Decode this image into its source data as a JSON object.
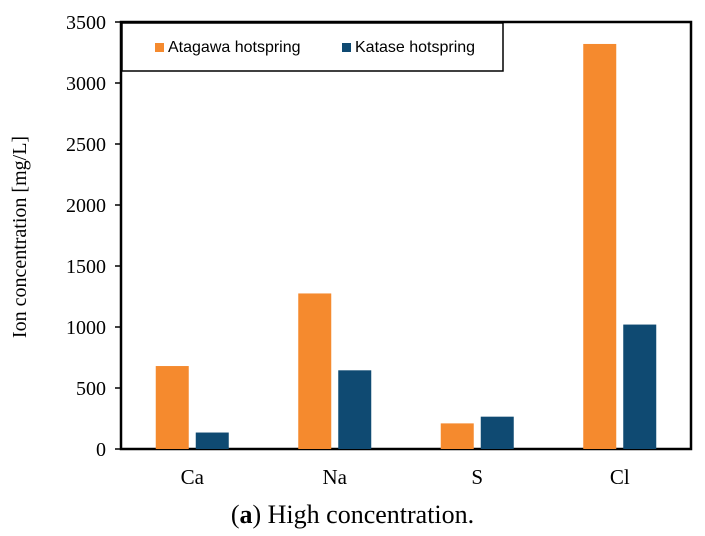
{
  "chart_data": {
    "type": "bar",
    "title": "",
    "xlabel": "",
    "ylabel": "Ion concentration  [mg/L]",
    "ylim": [
      0,
      3500
    ],
    "yticks": [
      0,
      500,
      1000,
      1500,
      2000,
      2500,
      3000,
      3500
    ],
    "grid": false,
    "legend_position": "top-left",
    "categories": [
      "Ca",
      "Na",
      "S",
      "Cl"
    ],
    "series": [
      {
        "name": "Atagawa hotspring",
        "color": "#f58a2e",
        "values": [
          680,
          1275,
          210,
          3320
        ]
      },
      {
        "name": "Katase hotspring",
        "color": "#0f4a72",
        "values": [
          135,
          645,
          265,
          1020
        ]
      }
    ]
  },
  "caption": {
    "open": "(",
    "letter": "a",
    "rest": ") High concentration."
  }
}
